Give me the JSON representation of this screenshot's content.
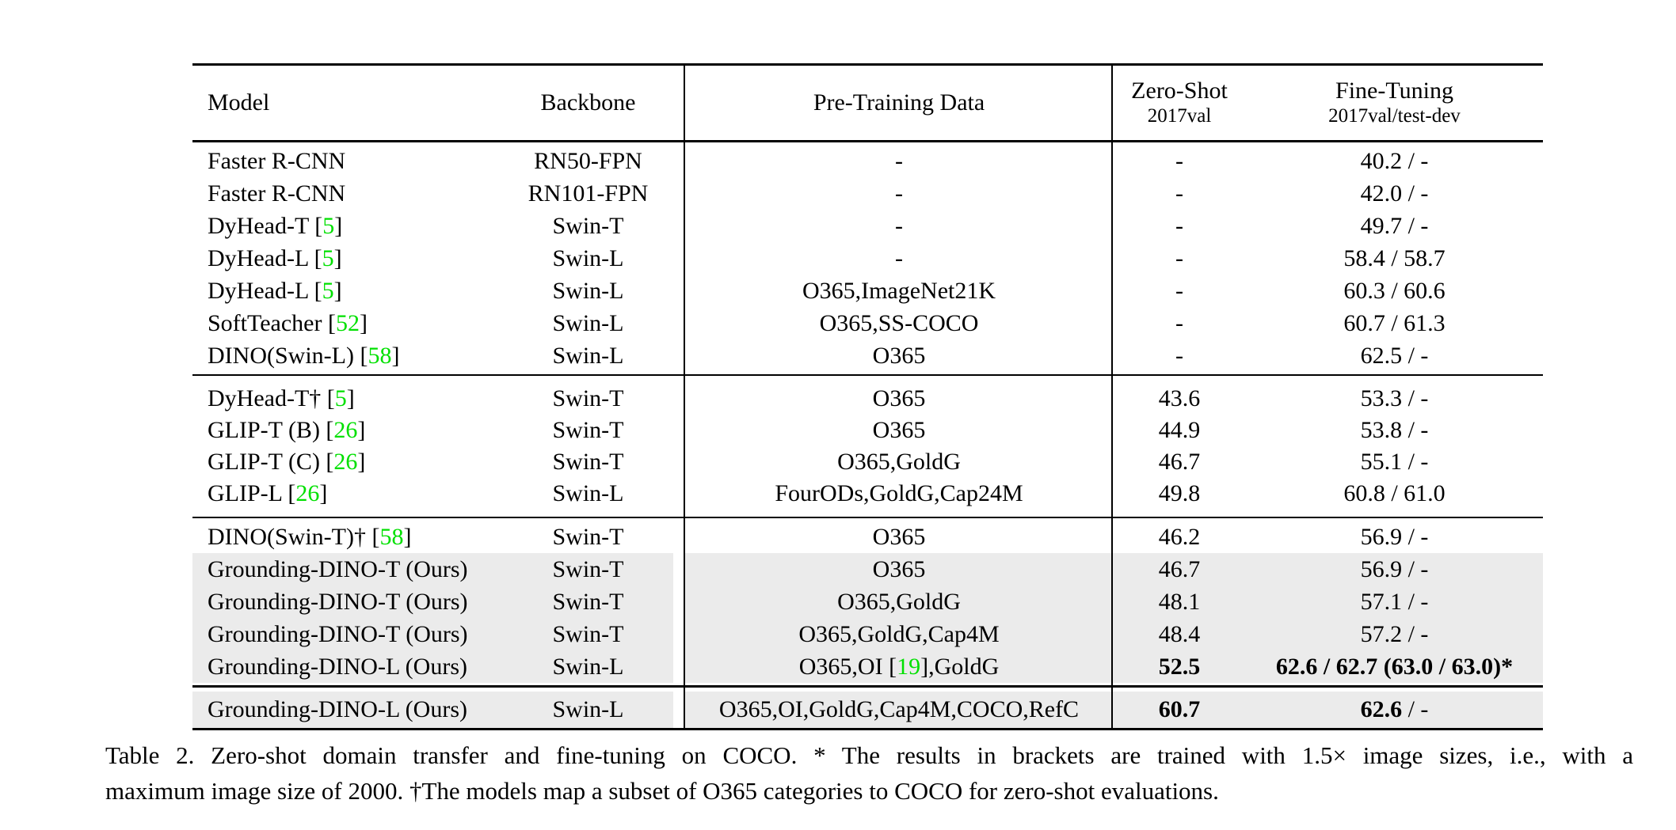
{
  "colors": {
    "citation_green": "#00e000",
    "row_highlight": "#ebebeb",
    "rule_black": "#000000"
  },
  "table": {
    "header": {
      "model": "Model",
      "backbone": "Backbone",
      "pretrain": "Pre-Training Data",
      "zeroshot_line1": "Zero-Shot",
      "zeroshot_line2": "2017val",
      "finetune_line1": "Fine-Tuning",
      "finetune_line2": "2017val/test-dev"
    },
    "sections": [
      {
        "rows": [
          {
            "model": [
              {
                "t": "Faster R-CNN"
              }
            ],
            "backbone": "RN50-FPN",
            "pretrain": [
              {
                "t": "-"
              }
            ],
            "zeroshot": [
              {
                "t": "-"
              }
            ],
            "finetune": [
              {
                "t": "40.2 / -"
              }
            ],
            "highlight": false
          },
          {
            "model": [
              {
                "t": "Faster R-CNN"
              }
            ],
            "backbone": "RN101-FPN",
            "pretrain": [
              {
                "t": "-"
              }
            ],
            "zeroshot": [
              {
                "t": "-"
              }
            ],
            "finetune": [
              {
                "t": "42.0 / -"
              }
            ],
            "highlight": false
          },
          {
            "model": [
              {
                "t": "DyHead-T ["
              },
              {
                "t": "5",
                "green": true
              },
              {
                "t": "]"
              }
            ],
            "backbone": "Swin-T",
            "pretrain": [
              {
                "t": "-"
              }
            ],
            "zeroshot": [
              {
                "t": "-"
              }
            ],
            "finetune": [
              {
                "t": "49.7 / -"
              }
            ],
            "highlight": false
          },
          {
            "model": [
              {
                "t": "DyHead-L ["
              },
              {
                "t": "5",
                "green": true
              },
              {
                "t": "]"
              }
            ],
            "backbone": "Swin-L",
            "pretrain": [
              {
                "t": "-"
              }
            ],
            "zeroshot": [
              {
                "t": "-"
              }
            ],
            "finetune": [
              {
                "t": "58.4 / 58.7"
              }
            ],
            "highlight": false
          },
          {
            "model": [
              {
                "t": "DyHead-L ["
              },
              {
                "t": "5",
                "green": true
              },
              {
                "t": "]"
              }
            ],
            "backbone": "Swin-L",
            "pretrain": [
              {
                "t": "O365,ImageNet21K"
              }
            ],
            "zeroshot": [
              {
                "t": "-"
              }
            ],
            "finetune": [
              {
                "t": "60.3 / 60.6"
              }
            ],
            "highlight": false
          },
          {
            "model": [
              {
                "t": "SoftTeacher ["
              },
              {
                "t": "52",
                "green": true
              },
              {
                "t": "]"
              }
            ],
            "backbone": "Swin-L",
            "pretrain": [
              {
                "t": "O365,SS-COCO"
              }
            ],
            "zeroshot": [
              {
                "t": "-"
              }
            ],
            "finetune": [
              {
                "t": "60.7 / 61.3"
              }
            ],
            "highlight": false
          },
          {
            "model": [
              {
                "t": "DINO(Swin-L) ["
              },
              {
                "t": "58",
                "green": true
              },
              {
                "t": "]"
              }
            ],
            "backbone": "Swin-L",
            "pretrain": [
              {
                "t": "O365"
              }
            ],
            "zeroshot": [
              {
                "t": "-"
              }
            ],
            "finetune": [
              {
                "t": "62.5 / -"
              }
            ],
            "highlight": false
          }
        ]
      },
      {
        "rows": [
          {
            "model": [
              {
                "t": "DyHead-T† ["
              },
              {
                "t": "5",
                "green": true
              },
              {
                "t": "]"
              }
            ],
            "backbone": "Swin-T",
            "pretrain": [
              {
                "t": "O365"
              }
            ],
            "zeroshot": [
              {
                "t": "43.6"
              }
            ],
            "finetune": [
              {
                "t": "53.3 / -"
              }
            ],
            "highlight": false
          },
          {
            "model": [
              {
                "t": "GLIP-T (B) ["
              },
              {
                "t": "26",
                "green": true
              },
              {
                "t": "]"
              }
            ],
            "backbone": "Swin-T",
            "pretrain": [
              {
                "t": "O365"
              }
            ],
            "zeroshot": [
              {
                "t": "44.9"
              }
            ],
            "finetune": [
              {
                "t": "53.8 / -"
              }
            ],
            "highlight": false
          },
          {
            "model": [
              {
                "t": "GLIP-T (C) ["
              },
              {
                "t": "26",
                "green": true
              },
              {
                "t": "]"
              }
            ],
            "backbone": "Swin-T",
            "pretrain": [
              {
                "t": "O365,GoldG"
              }
            ],
            "zeroshot": [
              {
                "t": "46.7"
              }
            ],
            "finetune": [
              {
                "t": "55.1 / -"
              }
            ],
            "highlight": false
          },
          {
            "model": [
              {
                "t": "GLIP-L ["
              },
              {
                "t": "26",
                "green": true
              },
              {
                "t": "]"
              }
            ],
            "backbone": "Swin-L",
            "pretrain": [
              {
                "t": "FourODs,GoldG,Cap24M"
              }
            ],
            "zeroshot": [
              {
                "t": "49.8"
              }
            ],
            "finetune": [
              {
                "t": "60.8 / 61.0"
              }
            ],
            "highlight": false
          }
        ]
      },
      {
        "rows": [
          {
            "model": [
              {
                "t": "DINO(Swin-T)† ["
              },
              {
                "t": "58",
                "green": true
              },
              {
                "t": "]"
              }
            ],
            "backbone": "Swin-T",
            "pretrain": [
              {
                "t": "O365"
              }
            ],
            "zeroshot": [
              {
                "t": "46.2"
              }
            ],
            "finetune": [
              {
                "t": "56.9 / -"
              }
            ],
            "highlight": false
          },
          {
            "model": [
              {
                "t": "Grounding-DINO-T (Ours)"
              }
            ],
            "backbone": "Swin-T",
            "pretrain": [
              {
                "t": "O365"
              }
            ],
            "zeroshot": [
              {
                "t": "46.7"
              }
            ],
            "finetune": [
              {
                "t": "56.9 / -"
              }
            ],
            "highlight": true
          },
          {
            "model": [
              {
                "t": "Grounding-DINO-T (Ours)"
              }
            ],
            "backbone": "Swin-T",
            "pretrain": [
              {
                "t": "O365,GoldG"
              }
            ],
            "zeroshot": [
              {
                "t": "48.1"
              }
            ],
            "finetune": [
              {
                "t": "57.1 / -"
              }
            ],
            "highlight": true
          },
          {
            "model": [
              {
                "t": "Grounding-DINO-T (Ours)"
              }
            ],
            "backbone": "Swin-T",
            "pretrain": [
              {
                "t": "O365,GoldG,Cap4M"
              }
            ],
            "zeroshot": [
              {
                "t": "48.4"
              }
            ],
            "finetune": [
              {
                "t": "57.2 / -"
              }
            ],
            "highlight": true
          },
          {
            "model": [
              {
                "t": "Grounding-DINO-L (Ours)"
              }
            ],
            "backbone": "Swin-L",
            "pretrain": [
              {
                "t": "O365,OI ["
              },
              {
                "t": "19",
                "green": true
              },
              {
                "t": "],GoldG"
              }
            ],
            "zeroshot": [
              {
                "t": "52.5",
                "bold": true
              }
            ],
            "finetune": [
              {
                "t": "62.6 / 62.7 (63.0 / 63.0)*",
                "bold": true
              }
            ],
            "highlight": true
          }
        ]
      },
      {
        "rows": [
          {
            "model": [
              {
                "t": "Grounding-DINO-L (Ours)"
              }
            ],
            "backbone": "Swin-L",
            "pretrain": [
              {
                "t": "O365,OI,GoldG,Cap4M,COCO,RefC"
              }
            ],
            "zeroshot": [
              {
                "t": "60.7",
                "bold": true
              }
            ],
            "finetune": [
              {
                "t": "62.6",
                "bold": true
              },
              {
                "t": " / -"
              }
            ],
            "highlight": true
          }
        ]
      }
    ]
  },
  "caption": {
    "lines": [
      "Table 2. Zero-shot domain transfer and fine-tuning on COCO. * The results in brackets are trained with 1.5× image sizes, i.e., with a",
      "maximum image size of 2000. †The models map a subset of O365 categories to COCO for zero-shot evaluations."
    ]
  }
}
